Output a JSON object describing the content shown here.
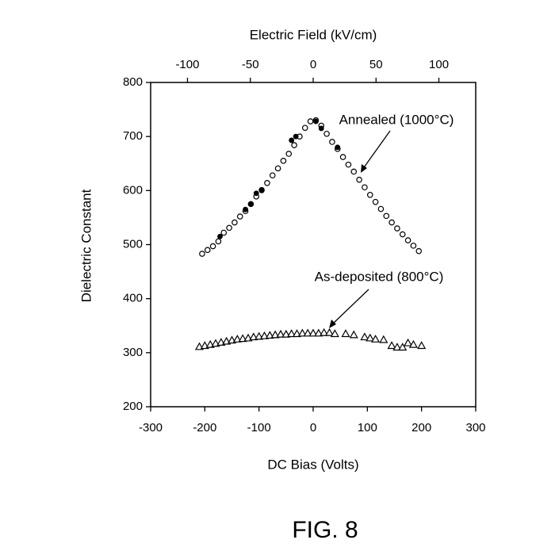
{
  "chart_data": {
    "type": "scatter",
    "xlabel": "DC Bias (Volts)",
    "ylabel": "Dielectric Constant",
    "x2label": "Electric Field (kV/cm)",
    "caption": "FIG. 8",
    "xlim": [
      -300,
      300
    ],
    "xticks": [
      -300,
      -200,
      -100,
      0,
      100,
      200,
      300
    ],
    "ylim": [
      200,
      800
    ],
    "yticks": [
      200,
      300,
      400,
      500,
      600,
      700,
      800
    ],
    "x2lim": [
      -129.3,
      129.3
    ],
    "x2ticks": [
      -100,
      -50,
      0,
      50,
      100
    ],
    "series": [
      {
        "name": "Annealed (1000°C)",
        "marker": "circle",
        "color": "#000",
        "x": [
          -205,
          -195,
          -185,
          -175,
          -165,
          -155,
          -145,
          -135,
          -125,
          -115,
          -105,
          -95,
          -85,
          -75,
          -65,
          -55,
          -45,
          -35,
          -25,
          -15,
          -5,
          5,
          15,
          25,
          35,
          45,
          55,
          65,
          75,
          85,
          95,
          105,
          115,
          125,
          135,
          145,
          155,
          165,
          175,
          185,
          195
        ],
        "values": [
          483,
          490,
          497,
          506,
          522,
          531,
          541,
          552,
          562,
          575,
          589,
          601,
          614,
          628,
          641,
          655,
          668,
          684,
          700,
          716,
          728,
          730,
          720,
          705,
          690,
          677,
          662,
          648,
          635,
          620,
          606,
          592,
          579,
          566,
          553,
          541,
          530,
          519,
          508,
          498,
          488
        ]
      },
      {
        "marker": "filled-circle",
        "color": "#000",
        "x": [
          -172,
          -125,
          -115,
          -105,
          -95,
          -40,
          -32,
          5,
          15,
          45
        ],
        "values": [
          515,
          565,
          575,
          595,
          600,
          693,
          700,
          728,
          715,
          680
        ]
      },
      {
        "name": "As-deposited (800°C)",
        "marker": "triangle",
        "color": "#000",
        "x": [
          -210,
          -200,
          -190,
          -180,
          -170,
          -160,
          -150,
          -140,
          -130,
          -120,
          -110,
          -100,
          -90,
          -80,
          -70,
          -60,
          -50,
          -40,
          -30,
          -20,
          -10,
          0,
          10,
          20,
          30,
          40,
          60,
          75,
          95,
          105,
          115,
          130,
          145,
          155,
          165,
          175,
          185,
          200
        ],
        "values": [
          311,
          313,
          315,
          317,
          319,
          321,
          323,
          325,
          326,
          327,
          329,
          330,
          331,
          332,
          333,
          334,
          334,
          335,
          335,
          336,
          336,
          336,
          336,
          337,
          337,
          335,
          335,
          333,
          329,
          327,
          325,
          324,
          313,
          310,
          310,
          318,
          315,
          313
        ]
      }
    ]
  }
}
